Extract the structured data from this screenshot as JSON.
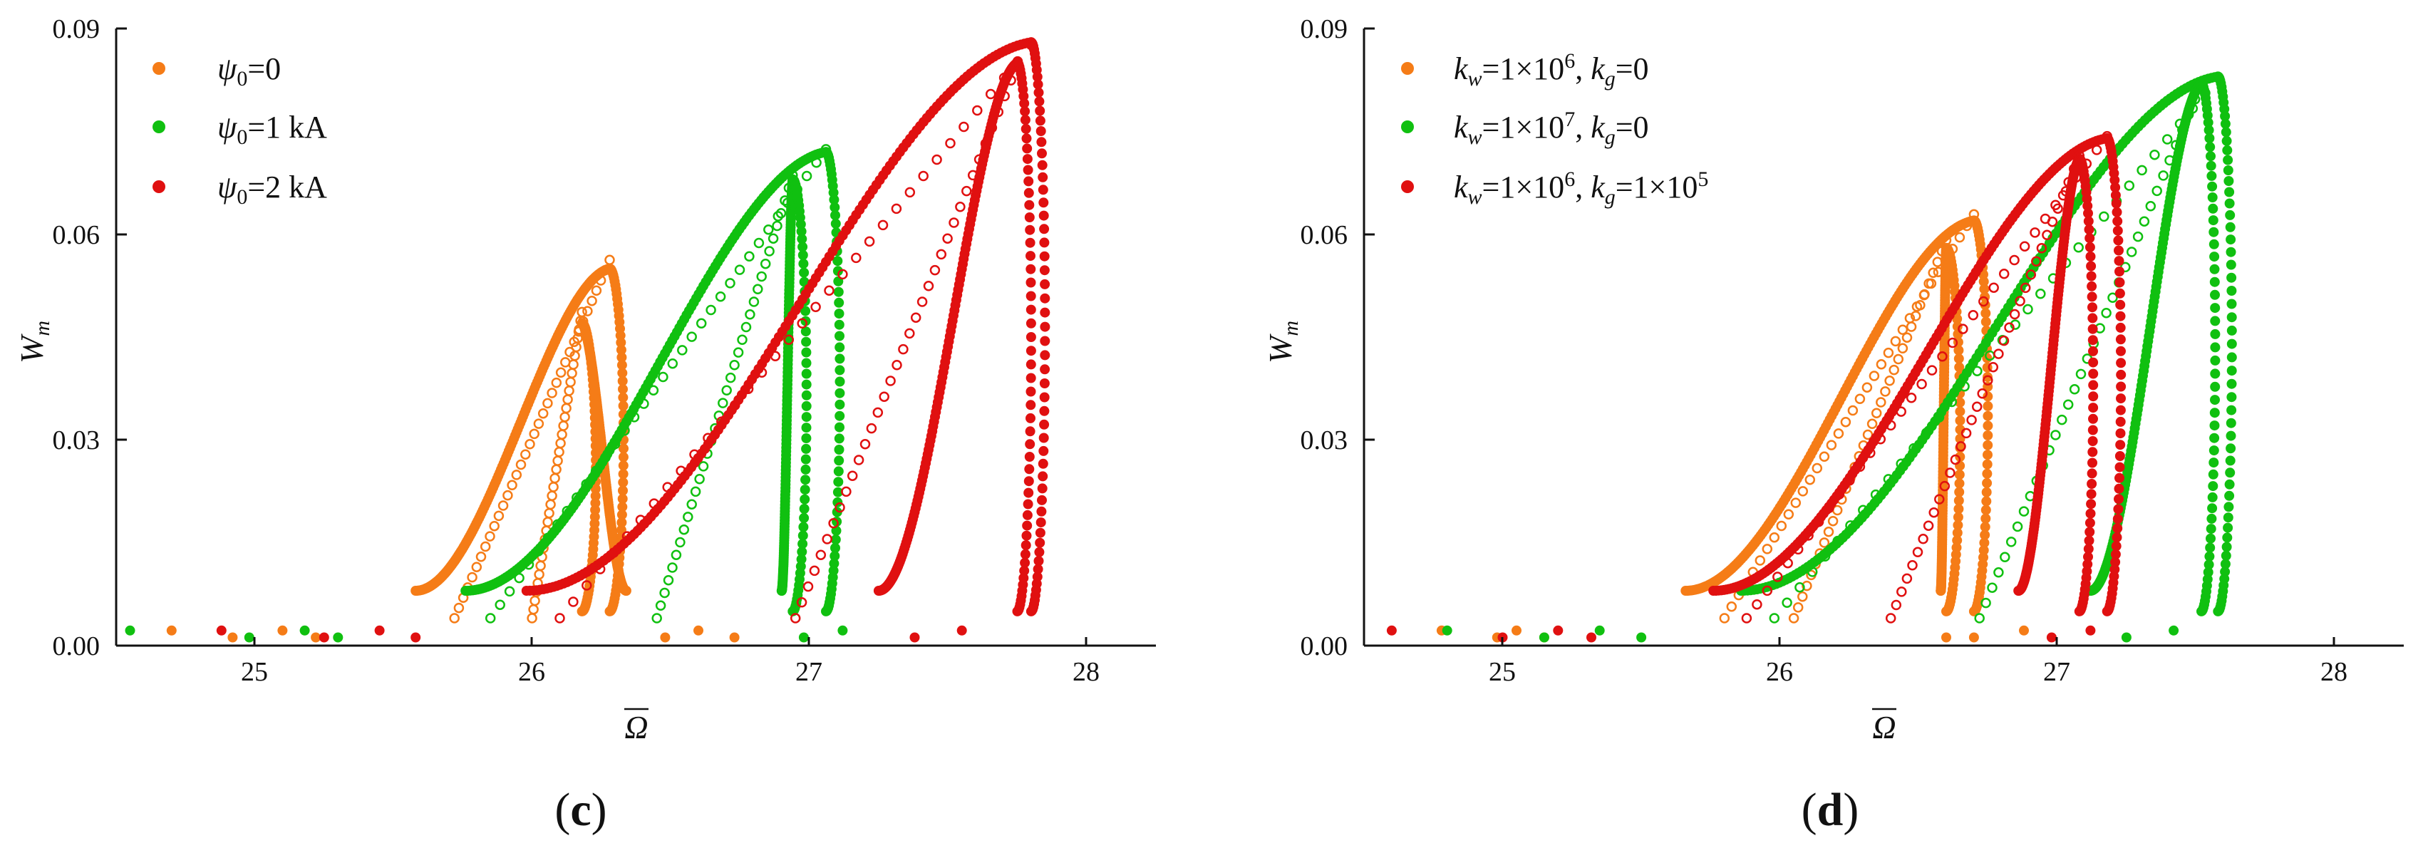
{
  "colors": {
    "orange": "#F57C17",
    "green": "#10C010",
    "red": "#E01010",
    "axis": "#111111"
  },
  "chart_data": [
    {
      "id": "c",
      "type": "scatter",
      "panel_label": "c",
      "xlabel": "Ω",
      "ylabel_main": "W",
      "ylabel_sub": "m",
      "xlim": [
        24.5,
        28.25
      ],
      "ylim": [
        0,
        0.09
      ],
      "xticks": [
        "25",
        "26",
        "27",
        "28"
      ],
      "yticks": [
        "0.00",
        "0.03",
        "0.06",
        "0.09"
      ],
      "legend_position": "top-left",
      "series": [
        {
          "name": "ψ0=0",
          "color_key": "orange",
          "legend": {
            "sym": "ψ",
            "sub": "0",
            "rest": "=0"
          },
          "curves": [
            {
              "amp": 0.055,
              "peak_x": 26.28,
              "min_x": 25.58,
              "lower_end_x": 25.72,
              "tail_x": [
                25.22,
                25.1,
                24.92,
                24.7
              ]
            },
            {
              "amp": 0.047,
              "peak_x": 26.18,
              "min_x": 26.34,
              "lower_end_x": 26.0,
              "tail_x": [
                26.48,
                26.6,
                26.73
              ]
            }
          ]
        },
        {
          "name": "ψ0=1 kA",
          "color_key": "green",
          "legend": {
            "sym": "ψ",
            "sub": "0",
            "rest": "=1 kA"
          },
          "curves": [
            {
              "amp": 0.072,
              "peak_x": 27.06,
              "min_x": 25.76,
              "lower_end_x": 25.85,
              "tail_x": [
                25.3,
                25.18,
                24.98,
                24.55
              ]
            },
            {
              "amp": 0.068,
              "peak_x": 26.94,
              "min_x": 26.9,
              "lower_end_x": 26.45,
              "tail_x": [
                26.98,
                27.12
              ]
            }
          ]
        },
        {
          "name": "ψ0=2 kA",
          "color_key": "red",
          "legend": {
            "sym": "ψ",
            "sub": "0",
            "rest": "=2 kA"
          },
          "curves": [
            {
              "amp": 0.088,
              "peak_x": 27.8,
              "min_x": 25.98,
              "lower_end_x": 26.1,
              "tail_x": [
                25.58,
                25.45,
                25.25,
                24.88
              ]
            },
            {
              "amp": 0.085,
              "peak_x": 27.75,
              "min_x": 27.25,
              "lower_end_x": 26.95,
              "tail_x": [
                27.38,
                27.55
              ]
            }
          ]
        }
      ]
    },
    {
      "id": "d",
      "type": "scatter",
      "panel_label": "d",
      "xlabel": "Ω",
      "ylabel_main": "W",
      "ylabel_sub": "m",
      "xlim": [
        24.5,
        28.25
      ],
      "ylim": [
        0,
        0.09
      ],
      "xticks": [
        "25",
        "26",
        "27",
        "28"
      ],
      "yticks": [
        "0.00",
        "0.03",
        "0.06",
        "0.09"
      ],
      "legend_position": "top-left",
      "series": [
        {
          "name": "kw=1×10^6, kg=0",
          "color_key": "orange",
          "legend": {
            "k1": "k",
            "k1sub": "w",
            "v1": "=1×10",
            "v1sup": "6",
            "k2": "k",
            "k2sub": "g",
            "v2": "=0",
            "v2sup": ""
          },
          "curves": [
            {
              "amp": 0.062,
              "peak_x": 26.7,
              "min_x": 25.66,
              "lower_end_x": 25.8,
              "tail_x": [
                25.15,
                25.05,
                24.98,
                24.78
              ]
            },
            {
              "amp": 0.058,
              "peak_x": 26.6,
              "min_x": 26.58,
              "lower_end_x": 26.05,
              "tail_x": [
                26.7,
                26.88,
                26.6
              ]
            }
          ]
        },
        {
          "name": "kw=1×10^7, kg=0",
          "color_key": "green",
          "legend": {
            "k1": "k",
            "k1sub": "w",
            "v1": "=1×10",
            "v1sup": "7",
            "k2": "k",
            "k2sub": "g",
            "v2": "=0",
            "v2sup": ""
          },
          "curves": [
            {
              "amp": 0.083,
              "peak_x": 27.58,
              "min_x": 25.86,
              "lower_end_x": 25.98,
              "tail_x": [
                25.5,
                25.35,
                25.15,
                24.8
              ]
            },
            {
              "amp": 0.082,
              "peak_x": 27.52,
              "min_x": 27.12,
              "lower_end_x": 26.72,
              "tail_x": [
                27.25,
                27.42
              ]
            }
          ]
        },
        {
          "name": "kw=1×10^6, kg=1×10^5",
          "color_key": "red",
          "legend": {
            "k1": "k",
            "k1sub": "w",
            "v1": "=1×10",
            "v1sup": "6",
            "k2": "k",
            "k2sub": "g",
            "v2": "=1×10",
            "v2sup": "5"
          },
          "curves": [
            {
              "amp": 0.074,
              "peak_x": 27.18,
              "min_x": 25.76,
              "lower_end_x": 25.88,
              "tail_x": [
                25.32,
                25.2,
                25.0,
                24.6
              ]
            },
            {
              "amp": 0.071,
              "peak_x": 27.08,
              "min_x": 26.86,
              "lower_end_x": 26.4,
              "tail_x": [
                26.98,
                27.12
              ]
            }
          ]
        }
      ]
    }
  ]
}
